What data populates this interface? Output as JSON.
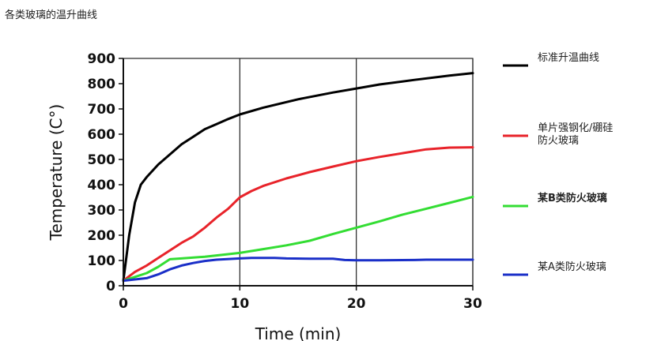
{
  "page": {
    "title": "各类玻璃的温升曲线"
  },
  "chart_data": {
    "type": "line",
    "title": "",
    "xlabel": "Time (min)",
    "ylabel": "Temperature (C°)",
    "xlim": [
      0,
      30
    ],
    "ylim": [
      0,
      900
    ],
    "xticks": [
      0,
      10,
      20,
      30
    ],
    "yticks": [
      0,
      100,
      200,
      300,
      400,
      500,
      600,
      700,
      800,
      900
    ],
    "grid": "vertical lines at x=10,20,30; boxed plot area",
    "legend_placement": "right",
    "series": [
      {
        "name": "标准升温曲线",
        "color": "#000000",
        "points": [
          [
            0,
            20
          ],
          [
            0.5,
            200
          ],
          [
            1,
            330
          ],
          [
            1.5,
            400
          ],
          [
            2,
            430
          ],
          [
            3,
            480
          ],
          [
            4,
            520
          ],
          [
            5,
            560
          ],
          [
            6,
            590
          ],
          [
            7,
            620
          ],
          [
            8,
            640
          ],
          [
            9,
            660
          ],
          [
            10,
            678
          ],
          [
            12,
            705
          ],
          [
            15,
            738
          ],
          [
            18,
            765
          ],
          [
            20,
            781
          ],
          [
            22,
            797
          ],
          [
            25,
            815
          ],
          [
            28,
            832
          ],
          [
            30,
            842
          ]
        ]
      },
      {
        "name": "单片强钢化/硼硅防火玻璃",
        "color": "#e8232a",
        "points": [
          [
            0,
            20
          ],
          [
            1,
            55
          ],
          [
            2,
            80
          ],
          [
            3,
            110
          ],
          [
            4,
            140
          ],
          [
            5,
            170
          ],
          [
            6,
            195
          ],
          [
            7,
            230
          ],
          [
            8,
            270
          ],
          [
            9,
            305
          ],
          [
            10,
            350
          ],
          [
            11,
            375
          ],
          [
            12,
            395
          ],
          [
            14,
            425
          ],
          [
            16,
            450
          ],
          [
            18,
            472
          ],
          [
            20,
            493
          ],
          [
            22,
            510
          ],
          [
            24,
            525
          ],
          [
            26,
            540
          ],
          [
            28,
            547
          ],
          [
            30,
            548
          ]
        ]
      },
      {
        "name": "某B类防火玻璃",
        "color": "#33dd33",
        "points": [
          [
            0,
            20
          ],
          [
            1,
            35
          ],
          [
            2,
            50
          ],
          [
            3,
            75
          ],
          [
            4,
            105
          ],
          [
            5,
            108
          ],
          [
            7,
            115
          ],
          [
            9,
            125
          ],
          [
            10,
            130
          ],
          [
            12,
            145
          ],
          [
            14,
            160
          ],
          [
            16,
            178
          ],
          [
            18,
            205
          ],
          [
            20,
            230
          ],
          [
            22,
            255
          ],
          [
            24,
            282
          ],
          [
            26,
            305
          ],
          [
            28,
            328
          ],
          [
            30,
            352
          ]
        ]
      },
      {
        "name": "某A类防火玻璃",
        "color": "#1a2fc8",
        "points": [
          [
            0,
            20
          ],
          [
            1,
            25
          ],
          [
            2,
            30
          ],
          [
            3,
            45
          ],
          [
            4,
            65
          ],
          [
            5,
            80
          ],
          [
            6,
            90
          ],
          [
            7,
            98
          ],
          [
            8,
            103
          ],
          [
            10,
            108
          ],
          [
            11,
            110
          ],
          [
            13,
            110
          ],
          [
            14,
            108
          ],
          [
            16,
            107
          ],
          [
            18,
            107
          ],
          [
            19,
            102
          ],
          [
            20,
            101
          ],
          [
            22,
            101
          ],
          [
            25,
            102
          ],
          [
            26,
            103
          ],
          [
            30,
            103
          ]
        ]
      }
    ]
  },
  "legend": [
    {
      "label": "标准升温曲线",
      "color": "#000000",
      "bold": false
    },
    {
      "label_line1": "单片强钢化/硼硅",
      "label_line2": "防火玻璃",
      "color": "#e8232a",
      "bold": false
    },
    {
      "label": "某B类防火玻璃",
      "color": "#33dd33",
      "bold": true
    },
    {
      "label": "某A类防火玻璃",
      "color": "#1a2fc8",
      "bold": false
    }
  ]
}
